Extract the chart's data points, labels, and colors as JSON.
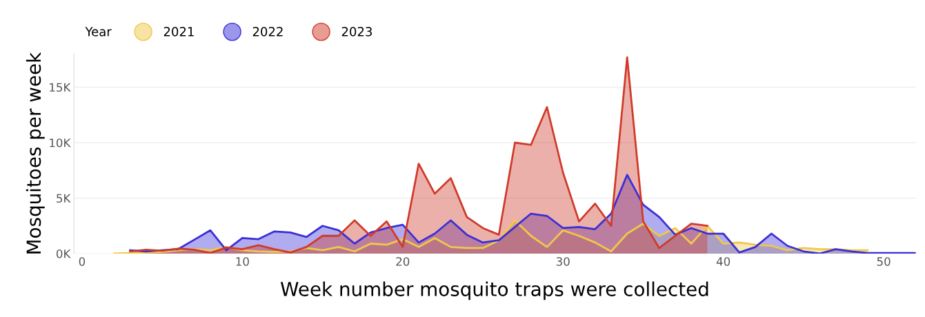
{
  "chart_data": {
    "type": "area",
    "xlabel": "Week number mosquito traps were collected",
    "ylabel": "Mosquitoes per week",
    "legend_title": "Year",
    "xlim": [
      -0.5,
      52
    ],
    "xticks": [
      0,
      10,
      20,
      30,
      40,
      50
    ],
    "ylim": [
      0,
      18
    ],
    "yticks": [
      {
        "value": 0,
        "label": "0K"
      },
      {
        "value": 5,
        "label": "5K"
      },
      {
        "value": 10,
        "label": "10K"
      },
      {
        "value": 15,
        "label": "15K"
      }
    ],
    "grid": "y",
    "legend": "top left",
    "series": [
      {
        "name": "2021",
        "color": "#f0c84a",
        "x": [
          2,
          3,
          4,
          5,
          6,
          7,
          8,
          9,
          10,
          11,
          12,
          13,
          14,
          15,
          16,
          17,
          18,
          19,
          20,
          21,
          22,
          23,
          24,
          25,
          26,
          27,
          28,
          29,
          30,
          31,
          32,
          33,
          34,
          35,
          36,
          37,
          38,
          39,
          40,
          41,
          42,
          43,
          44,
          45,
          46,
          47,
          48,
          49
        ],
        "values": [
          0.0,
          0.05,
          0.1,
          0.15,
          0.3,
          0.4,
          0.3,
          0.6,
          0.3,
          0.2,
          0.15,
          0.2,
          0.5,
          0.3,
          0.6,
          0.2,
          0.9,
          0.8,
          1.3,
          0.6,
          1.4,
          0.6,
          0.5,
          0.5,
          1.2,
          3.0,
          1.6,
          0.6,
          2.1,
          1.6,
          1.0,
          0.2,
          1.8,
          2.7,
          1.6,
          2.3,
          0.9,
          2.5,
          0.9,
          1.0,
          0.8,
          0.7,
          0.3,
          0.5,
          0.4,
          0.4,
          0.3,
          0.3
        ]
      },
      {
        "name": "2022",
        "color": "#3a2fd6",
        "x": [
          3,
          4,
          5,
          6,
          7,
          8,
          9,
          10,
          11,
          12,
          13,
          14,
          15,
          16,
          17,
          18,
          19,
          20,
          21,
          22,
          23,
          24,
          25,
          26,
          27,
          28,
          29,
          30,
          31,
          32,
          33,
          34,
          35,
          36,
          37,
          38,
          39,
          40,
          41,
          42,
          43,
          44,
          45,
          46,
          47,
          48,
          49,
          50,
          51,
          52
        ],
        "values": [
          0.3,
          0.2,
          0.3,
          0.4,
          1.25,
          2.1,
          0.3,
          1.4,
          1.3,
          2.0,
          1.9,
          1.5,
          2.5,
          2.1,
          0.9,
          1.9,
          2.3,
          2.6,
          1.0,
          1.8,
          3.0,
          1.7,
          1.0,
          1.2,
          2.4,
          3.6,
          3.4,
          2.3,
          2.4,
          2.2,
          3.6,
          7.1,
          4.4,
          3.3,
          1.7,
          2.3,
          1.8,
          1.8,
          0.1,
          0.6,
          1.8,
          0.7,
          0.2,
          0.0,
          0.4,
          0.2,
          0.05,
          0.05,
          0.05,
          0.05
        ]
      },
      {
        "name": "2023",
        "color": "#d03a2a",
        "x": [
          3,
          4,
          5,
          6,
          7,
          8,
          9,
          10,
          11,
          12,
          13,
          14,
          15,
          16,
          17,
          18,
          19,
          20,
          21,
          22,
          23,
          24,
          25,
          26,
          27,
          28,
          29,
          30,
          31,
          32,
          33,
          34,
          35,
          36,
          37,
          38,
          39
        ],
        "values": [
          0.2,
          0.35,
          0.25,
          0.45,
          0.35,
          0.05,
          0.55,
          0.4,
          0.75,
          0.4,
          0.1,
          0.6,
          1.6,
          1.6,
          3.0,
          1.6,
          2.9,
          0.6,
          8.1,
          5.4,
          6.8,
          3.3,
          2.3,
          1.7,
          10.0,
          9.8,
          13.2,
          7.3,
          2.9,
          4.5,
          2.5,
          17.7,
          2.9,
          0.5,
          1.6,
          2.7,
          2.5
        ]
      }
    ]
  }
}
